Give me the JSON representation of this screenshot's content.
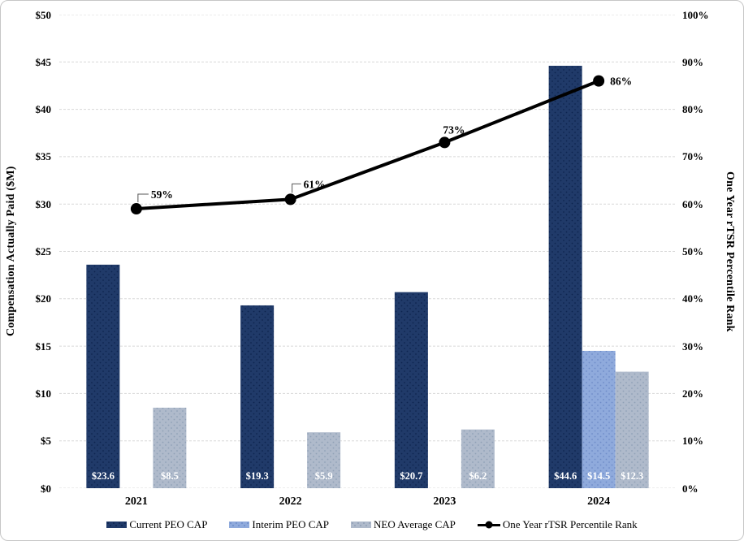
{
  "figure": {
    "background": "#ffffff",
    "border_color": "#c6c6c6"
  },
  "chart_data": {
    "type": "bar",
    "subtype": "combo bar + line, dual axis",
    "categories": [
      "2021",
      "2022",
      "2023",
      "2024"
    ],
    "bar_series": [
      {
        "name": "Current PEO CAP",
        "color": "#203A69",
        "dot_color": "#0E2450",
        "values": [
          23.6,
          19.3,
          20.7,
          44.6
        ],
        "data_labels": [
          "$23.6",
          "$19.3",
          "$20.7",
          "$44.6"
        ]
      },
      {
        "name": "Interim PEO CAP",
        "color": "#8FAADC",
        "dot_color": "#6E8CC8",
        "values": [
          null,
          null,
          null,
          14.5
        ],
        "data_labels": [
          null,
          null,
          null,
          "$14.5"
        ]
      },
      {
        "name": "NEO Average CAP",
        "color": "#AFBACB",
        "dot_color": "#8FA0B6",
        "values": [
          8.5,
          5.9,
          6.2,
          12.3
        ],
        "data_labels": [
          "$8.5",
          "$5.9",
          "$6.2",
          "$12.3"
        ]
      }
    ],
    "line_series": {
      "name": "One Year rTSR Percentile Rank",
      "color": "#000000",
      "values": [
        59,
        61,
        73,
        86
      ],
      "data_labels": [
        "59%",
        "61%",
        "73%",
        "86%"
      ]
    },
    "left_axis": {
      "title": "Compensation Actually Paid ($M)",
      "min": 0,
      "max": 50,
      "tick_labels": [
        "$0",
        "$5",
        "$10",
        "$15",
        "$20",
        "$25",
        "$30",
        "$35",
        "$40",
        "$45",
        "$50"
      ]
    },
    "right_axis": {
      "title": "One Year rTSR Percentile Rank",
      "min": 0,
      "max": 100,
      "tick_labels": [
        "0%",
        "10%",
        "20%",
        "30%",
        "40%",
        "50%",
        "60%",
        "70%",
        "80%",
        "90%",
        "100%"
      ]
    },
    "grid": {
      "show": true,
      "color": "#D8D8D8",
      "style": "dashed"
    },
    "legend_position": "bottom",
    "data_label_color": "#ffffff"
  }
}
